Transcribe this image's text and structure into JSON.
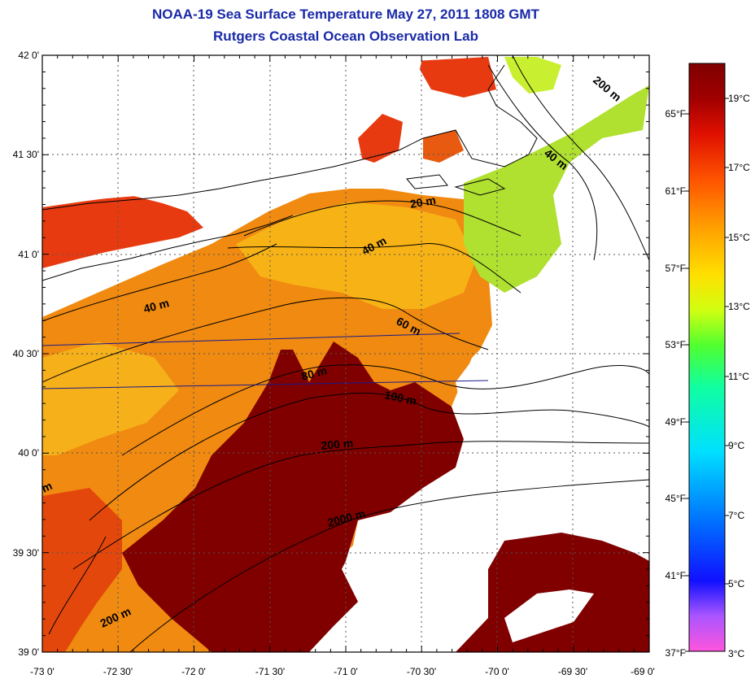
{
  "title": "NOAA-19 Sea Surface Temperature May 27, 2011 1808 GMT",
  "subtitle": "Rutgers Coastal Ocean Observation Lab",
  "lat_ticks": [
    "42 0'",
    "41 30'",
    "41 0'",
    "40 30'",
    "40 0'",
    "39 30'",
    "39 0'"
  ],
  "lon_ticks": [
    "-73 0'",
    "-72 30'",
    "-72 0'",
    "-71 30'",
    "-71 0'",
    "-70 30'",
    "-70 0'",
    "-69 30'",
    "-69 0'"
  ],
  "isobaths": [
    {
      "label": "200 m"
    },
    {
      "label": "40 m"
    },
    {
      "label": "20 m"
    },
    {
      "label": "40 m"
    },
    {
      "label": "40 m"
    },
    {
      "label": "60 m"
    },
    {
      "label": "80 m"
    },
    {
      "label": "100 m"
    },
    {
      "label": "200 m"
    },
    {
      "label": "m"
    },
    {
      "label": "2000 m"
    },
    {
      "label": "200 m"
    }
  ],
  "colorbar": {
    "celsius": [
      "19°C",
      "17°C",
      "15°C",
      "13°C",
      "11°C",
      "9°C",
      "7°C",
      "5°C",
      "3°C"
    ],
    "fahrenheit": [
      "65°F",
      "61°F",
      "57°F",
      "53°F",
      "49°F",
      "45°F",
      "41°F",
      "37°F"
    ],
    "colors": [
      "#ff55dd",
      "#aa55ff",
      "#1010ff",
      "#0070ff",
      "#00e0ff",
      "#10ffa0",
      "#50ff30",
      "#d0ff10",
      "#ffe000",
      "#ffa000",
      "#ff5500",
      "#e01000",
      "#a00000",
      "#800000"
    ]
  },
  "colors": {
    "title": "#1a2aa8",
    "land": "#ffffff",
    "warm_slope_water": "#800000",
    "shelf_water": "#f08a10",
    "cool_water": "#90e040"
  }
}
